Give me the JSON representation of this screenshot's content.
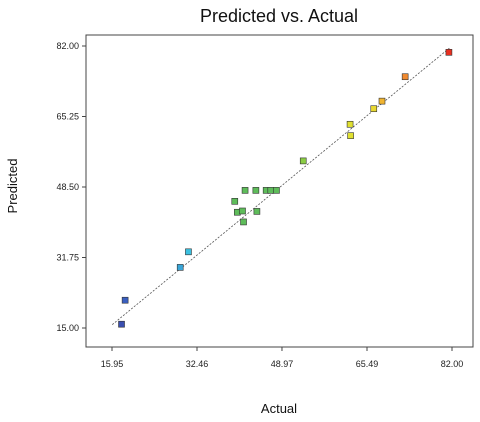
{
  "chart_data": {
    "type": "scatter",
    "title": "Predicted vs. Actual",
    "xlabel": "Actual",
    "ylabel": "Predicted",
    "xlim": [
      15.95,
      82.0
    ],
    "ylim": [
      15.0,
      82.0
    ],
    "x_ticks": [
      "15.95",
      "32.46",
      "48.97",
      "65.49",
      "82.00"
    ],
    "y_ticks": [
      "15.00",
      "31.75",
      "48.50",
      "65.25",
      "82.00"
    ],
    "x_tick_values": [
      15.95,
      32.46,
      48.97,
      65.49,
      82.0
    ],
    "y_tick_values": [
      15.0,
      31.75,
      48.5,
      65.25,
      82.0
    ],
    "grid": false,
    "reference_line": {
      "from": [
        16.0,
        15.8
      ],
      "to": [
        81.5,
        81.5
      ],
      "style": "dashed"
    },
    "points": [
      {
        "x": 17.8,
        "y": 15.9,
        "color": "#3a4fb0"
      },
      {
        "x": 18.5,
        "y": 21.6,
        "color": "#3a5fc0"
      },
      {
        "x": 29.2,
        "y": 29.4,
        "color": "#3aa6d8"
      },
      {
        "x": 30.8,
        "y": 33.1,
        "color": "#3ac0e0"
      },
      {
        "x": 39.8,
        "y": 45.1,
        "color": "#5ebc5a"
      },
      {
        "x": 40.3,
        "y": 42.5,
        "color": "#5ebc5a"
      },
      {
        "x": 41.3,
        "y": 42.8,
        "color": "#5ebc5a"
      },
      {
        "x": 41.5,
        "y": 40.2,
        "color": "#5ebc5a"
      },
      {
        "x": 41.8,
        "y": 47.7,
        "color": "#5ebc5a"
      },
      {
        "x": 43.9,
        "y": 47.7,
        "color": "#5ebc5a"
      },
      {
        "x": 44.1,
        "y": 42.7,
        "color": "#5ebc5a"
      },
      {
        "x": 45.9,
        "y": 47.7,
        "color": "#5ebc5a"
      },
      {
        "x": 46.8,
        "y": 47.7,
        "color": "#5ebc5a"
      },
      {
        "x": 47.9,
        "y": 47.7,
        "color": "#5ebc5a"
      },
      {
        "x": 53.1,
        "y": 54.7,
        "color": "#8acc44"
      },
      {
        "x": 62.2,
        "y": 63.4,
        "color": "#e0e030"
      },
      {
        "x": 62.3,
        "y": 60.7,
        "color": "#e0e030"
      },
      {
        "x": 66.8,
        "y": 67.1,
        "color": "#e8d830"
      },
      {
        "x": 68.4,
        "y": 68.9,
        "color": "#f0b430"
      },
      {
        "x": 72.9,
        "y": 74.7,
        "color": "#f08a30"
      },
      {
        "x": 81.4,
        "y": 80.5,
        "color": "#e83020"
      }
    ]
  }
}
